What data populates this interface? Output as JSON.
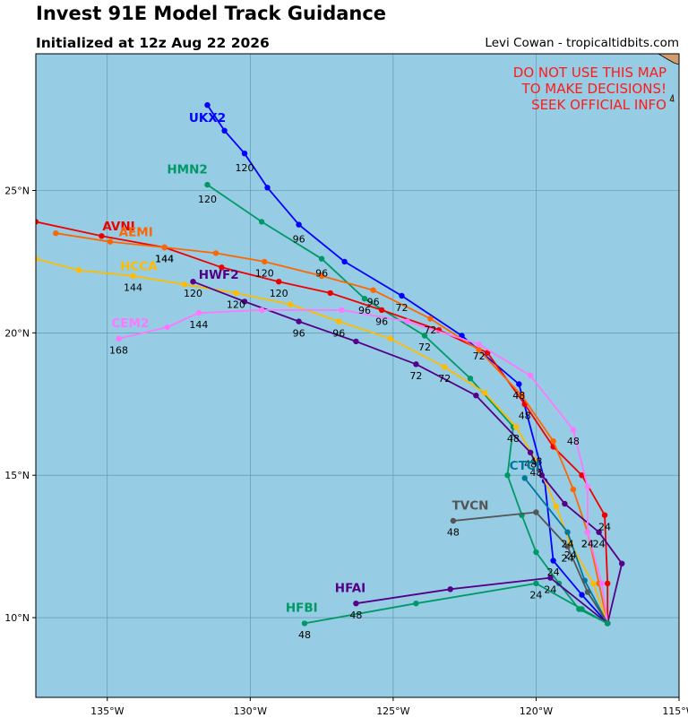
{
  "header": {
    "title": "Invest 91E Model Track Guidance",
    "subtitle": "Initialized at 12z Aug 22 2026",
    "credit": "Levi Cowan - tropicaltidbits.com"
  },
  "warning": [
    "DO NOT USE THIS MAP",
    "TO MAKE DECISIONS!",
    "SEEK OFFICIAL INFO"
  ],
  "colors": {
    "ocean": "#96cde4",
    "land": "#cf9d6f",
    "grid": "#5a8fa3",
    "warning": "#ff1a1a"
  },
  "map": {
    "lon_range": [
      -137.5,
      -115
    ],
    "lat_range": [
      7.2,
      29.8
    ],
    "lon_ticks": [
      {
        "value": -135,
        "label": "135°W"
      },
      {
        "value": -130,
        "label": "130°W"
      },
      {
        "value": -125,
        "label": "125°W"
      },
      {
        "value": -120,
        "label": "120°W"
      },
      {
        "value": -115,
        "label": "115°W"
      }
    ],
    "lat_ticks": [
      {
        "value": 10,
        "label": "10°N"
      },
      {
        "value": 15,
        "label": "15°N"
      },
      {
        "value": 20,
        "label": "20°N"
      },
      {
        "value": 25,
        "label": "25°N"
      }
    ]
  },
  "tracks": [
    {
      "name": "UKX2",
      "color": "#0000ff",
      "label_pos": [
        -31.5,
        27.4
      ],
      "points": [
        [
          -117.5,
          9.8
        ],
        [
          -118.4,
          10.8
        ],
        [
          -119.4,
          12.0
        ],
        [
          -119.7,
          14.8
        ],
        [
          -120.6,
          18.2
        ],
        [
          -122.6,
          19.9
        ],
        [
          -124.7,
          21.3
        ],
        [
          -126.7,
          22.5
        ],
        [
          -128.3,
          23.8
        ],
        [
          -129.4,
          25.1
        ],
        [
          -130.2,
          26.3
        ],
        [
          -130.9,
          27.1
        ],
        [
          -131.5,
          28.0
        ]
      ],
      "hour_labels": [
        {
          "text": "24",
          "p": [
            -119.4,
            11.6
          ]
        },
        {
          "text": "48",
          "p": [
            -120.6,
            17.8
          ]
        },
        {
          "text": "72",
          "p": [
            -124.7,
            20.9
          ]
        },
        {
          "text": "96",
          "p": [
            -128.3,
            23.3
          ]
        },
        {
          "text": "120",
          "p": [
            -130.2,
            25.8
          ]
        }
      ]
    },
    {
      "name": "HMN2",
      "color": "#009966",
      "label_pos": [
        -32.2,
        25.6
      ],
      "points": [
        [
          -117.5,
          9.8
        ],
        [
          -118.5,
          10.3
        ],
        [
          -119.2,
          11.2
        ],
        [
          -120.0,
          12.3
        ],
        [
          -120.5,
          13.6
        ],
        [
          -121.0,
          15.0
        ],
        [
          -120.8,
          16.7
        ],
        [
          -122.3,
          18.4
        ],
        [
          -123.9,
          19.9
        ],
        [
          -126.0,
          21.2
        ],
        [
          -127.5,
          22.6
        ],
        [
          -129.6,
          23.9
        ],
        [
          -131.5,
          25.2
        ]
      ],
      "hour_labels": [
        {
          "text": "48",
          "p": [
            -120.8,
            16.3
          ]
        },
        {
          "text": "72",
          "p": [
            -123.9,
            19.5
          ]
        },
        {
          "text": "96",
          "p": [
            -126.0,
            20.8
          ]
        },
        {
          "text": "96",
          "p": [
            -127.5,
            22.1
          ]
        },
        {
          "text": "120",
          "p": [
            -131.5,
            24.7
          ]
        }
      ]
    },
    {
      "name": "AVNI",
      "color": "#ee0000",
      "label_pos": [
        -134.6,
        23.6
      ],
      "points": [
        [
          -117.5,
          9.8
        ],
        [
          -117.5,
          11.2
        ],
        [
          -117.6,
          13.6
        ],
        [
          -118.4,
          15.0
        ],
        [
          -119.4,
          16.0
        ],
        [
          -120.4,
          17.5
        ],
        [
          -121.7,
          19.3
        ],
        [
          -123.4,
          20.1
        ],
        [
          -125.4,
          20.8
        ],
        [
          -127.2,
          21.4
        ],
        [
          -129.0,
          21.8
        ],
        [
          -131.0,
          22.3
        ],
        [
          -133.0,
          23.0
        ],
        [
          -135.2,
          23.4
        ],
        [
          -137.5,
          23.9
        ]
      ],
      "hour_labels": [
        {
          "text": "24",
          "p": [
            -117.6,
            13.2
          ]
        },
        {
          "text": "48",
          "p": [
            -120.4,
            17.1
          ]
        },
        {
          "text": "96",
          "p": [
            -125.4,
            20.4
          ]
        },
        {
          "text": "120",
          "p": [
            -129.0,
            21.4
          ]
        },
        {
          "text": "144",
          "p": [
            -133.0,
            22.6
          ]
        }
      ]
    },
    {
      "name": "AEMI",
      "color": "#ff6600",
      "label_pos": [
        -134.0,
        23.4
      ],
      "points": [
        [
          -117.5,
          9.8
        ],
        [
          -117.8,
          11.2
        ],
        [
          -118.2,
          13.0
        ],
        [
          -118.7,
          14.5
        ],
        [
          -119.4,
          16.2
        ],
        [
          -120.5,
          17.8
        ],
        [
          -122.0,
          19.4
        ],
        [
          -123.7,
          20.5
        ],
        [
          -125.7,
          21.5
        ],
        [
          -127.5,
          22.0
        ],
        [
          -129.5,
          22.5
        ],
        [
          -131.2,
          22.8
        ],
        [
          -133.0,
          23.0
        ],
        [
          -134.9,
          23.2
        ],
        [
          -136.8,
          23.5
        ]
      ],
      "hour_labels": [
        {
          "text": "24",
          "p": [
            -118.2,
            12.6
          ]
        },
        {
          "text": "72",
          "p": [
            -123.7,
            20.1
          ]
        },
        {
          "text": "96",
          "p": [
            -125.7,
            21.1
          ]
        },
        {
          "text": "120",
          "p": [
            -129.5,
            22.1
          ]
        },
        {
          "text": "144",
          "p": [
            -133.0,
            22.6
          ]
        }
      ]
    },
    {
      "name": "HCCA",
      "color": "#ffbb00",
      "label_pos": [
        -133.9,
        22.2
      ],
      "points": [
        [
          -117.5,
          9.8
        ],
        [
          -118.0,
          11.2
        ],
        [
          -118.8,
          12.6
        ],
        [
          -119.3,
          13.9
        ],
        [
          -120.0,
          15.5
        ],
        [
          -120.7,
          16.7
        ],
        [
          -121.8,
          17.9
        ],
        [
          -123.2,
          18.8
        ],
        [
          -125.1,
          19.8
        ],
        [
          -126.9,
          20.4
        ],
        [
          -128.6,
          21.0
        ],
        [
          -130.5,
          21.4
        ],
        [
          -132.3,
          21.7
        ],
        [
          -134.1,
          22.0
        ],
        [
          -136.0,
          22.2
        ],
        [
          -137.5,
          22.6
        ]
      ],
      "hour_labels": [
        {
          "text": "24",
          "p": [
            -118.8,
            12.2
          ]
        },
        {
          "text": "48",
          "p": [
            -120.0,
            15.1
          ]
        },
        {
          "text": "72",
          "p": [
            -123.2,
            18.4
          ]
        },
        {
          "text": "96",
          "p": [
            -126.9,
            20.0
          ]
        },
        {
          "text": "120",
          "p": [
            -130.5,
            21.0
          ]
        },
        {
          "text": "144",
          "p": [
            -134.1,
            21.6
          ]
        }
      ]
    },
    {
      "name": "HWF2",
      "color": "#550088",
      "label_pos": [
        -131.1,
        21.9
      ],
      "points": [
        [
          -117.5,
          9.8
        ],
        [
          -117.0,
          11.9
        ],
        [
          -117.8,
          13.0
        ],
        [
          -119.0,
          14.0
        ],
        [
          -119.8,
          15.0
        ],
        [
          -120.2,
          15.8
        ],
        [
          -122.1,
          17.8
        ],
        [
          -124.2,
          18.9
        ],
        [
          -126.3,
          19.7
        ],
        [
          -128.3,
          20.4
        ],
        [
          -130.2,
          21.1
        ],
        [
          -132.0,
          21.8
        ]
      ],
      "hour_labels": [
        {
          "text": "24",
          "p": [
            -117.8,
            12.6
          ]
        },
        {
          "text": "48",
          "p": [
            -120.2,
            15.4
          ]
        },
        {
          "text": "72",
          "p": [
            -124.2,
            18.5
          ]
        },
        {
          "text": "96",
          "p": [
            -128.3,
            20.0
          ]
        },
        {
          "text": "120",
          "p": [
            -132.0,
            21.4
          ]
        }
      ]
    },
    {
      "name": "CEM2",
      "color": "#ff77ff",
      "label_pos": [
        -134.2,
        20.2
      ],
      "points": [
        [
          -117.5,
          9.8
        ],
        [
          -117.7,
          11.2
        ],
        [
          -118.2,
          13.0
        ],
        [
          -118.2,
          14.6
        ],
        [
          -118.7,
          16.6
        ],
        [
          -120.2,
          18.5
        ],
        [
          -122.0,
          19.6
        ],
        [
          -124.5,
          20.4
        ],
        [
          -126.8,
          20.8
        ],
        [
          -129.6,
          20.8
        ],
        [
          -131.8,
          20.7
        ],
        [
          -132.9,
          20.2
        ],
        [
          -134.6,
          19.8
        ]
      ],
      "hour_labels": [
        {
          "text": "24",
          "p": [
            -118.2,
            12.6
          ]
        },
        {
          "text": "48",
          "p": [
            -118.7,
            16.2
          ]
        },
        {
          "text": "72",
          "p": [
            -122.0,
            19.2
          ]
        },
        {
          "text": "144",
          "p": [
            -131.8,
            20.3
          ]
        },
        {
          "text": "168",
          "p": [
            -134.6,
            19.4
          ]
        }
      ]
    },
    {
      "name": "CTCI",
      "color": "#00779f",
      "label_pos": [
        -120.4,
        15.2
      ],
      "points": [
        [
          -117.5,
          9.8
        ],
        [
          -118.3,
          11.3
        ],
        [
          -118.9,
          13.0
        ],
        [
          -120.4,
          14.9
        ]
      ],
      "hour_labels": [
        {
          "text": "24",
          "p": [
            -118.9,
            12.6
          ]
        },
        {
          "text": "48",
          "p": [
            -120.0,
            15.5
          ]
        }
      ]
    },
    {
      "name": "TVCN",
      "color": "#555555",
      "label_pos": [
        -122.3,
        13.8
      ],
      "points": [
        [
          -117.5,
          9.8
        ],
        [
          -118.2,
          10.9
        ],
        [
          -118.9,
          12.5
        ],
        [
          -120.0,
          13.7
        ],
        [
          -122.9,
          13.4
        ]
      ],
      "hour_labels": [
        {
          "text": "24",
          "p": [
            -118.9,
            12.1
          ]
        },
        {
          "text": "48",
          "p": [
            -122.9,
            13.0
          ]
        }
      ]
    },
    {
      "name": "HFAI",
      "color": "#550088",
      "label_pos": [
        -126.5,
        10.9
      ],
      "points": [
        [
          -117.5,
          9.8
        ],
        [
          -119.5,
          11.4
        ],
        [
          -123.0,
          11.0
        ],
        [
          -126.3,
          10.5
        ]
      ],
      "hour_labels": [
        {
          "text": "24",
          "p": [
            -119.5,
            11.0
          ]
        },
        {
          "text": "48",
          "p": [
            -126.3,
            10.1
          ]
        }
      ]
    },
    {
      "name": "HFBI",
      "color": "#009966",
      "label_pos": [
        -128.2,
        10.2
      ],
      "points": [
        [
          -117.5,
          9.8
        ],
        [
          -118.4,
          10.3
        ],
        [
          -120.0,
          11.2
        ],
        [
          -124.2,
          10.5
        ],
        [
          -128.1,
          9.8
        ]
      ],
      "hour_labels": [
        {
          "text": "24",
          "p": [
            -120.0,
            10.8
          ]
        },
        {
          "text": "48",
          "p": [
            -128.1,
            9.4
          ]
        }
      ]
    }
  ]
}
